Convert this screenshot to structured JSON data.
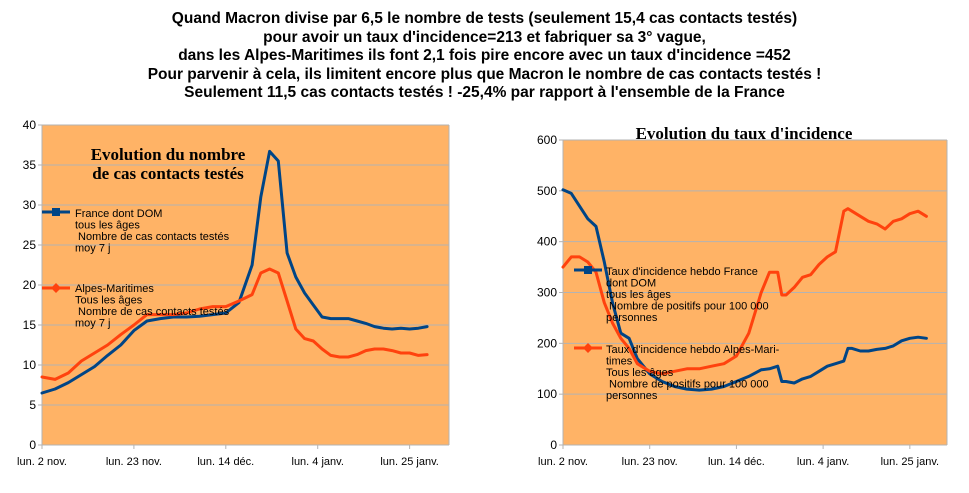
{
  "headline": [
    "Quand Macron divise par 6,5 le nombre de tests (seulement 15,4 cas contacts testés)",
    "pour avoir un taux d'incidence=213 et fabriquer sa 3° vague,",
    "dans les Alpes-Maritimes ils font 2,1 fois pire encore avec un taux d'incidence =452",
    "Pour parvenir à cela, ils limitent encore plus que Macron le nombre de cas contacts testés !",
    "Seulement 11,5 cas contacts testés ! -25,4% par rapport à l'ensemble de la France"
  ],
  "colors": {
    "plot_bg": "#ffb366",
    "grid": "#b3b3b3",
    "france": "#004586",
    "alpes": "#ff420e"
  },
  "chart_data": [
    {
      "type": "line",
      "title_lines": [
        "Evolution du nombre",
        "de cas contacts testés"
      ],
      "x_tick_labels": [
        "lun. 2 nov.",
        "lun. 23 nov.",
        "lun. 14 déc.",
        "lun. 4 janv.",
        "lun. 25 janv."
      ],
      "x_tick_days": [
        0,
        21,
        42,
        63,
        84
      ],
      "ylim": [
        0,
        40
      ],
      "y_ticks": [
        0,
        5,
        10,
        15,
        20,
        25,
        30,
        35,
        40
      ],
      "xlim_days": [
        0,
        93
      ],
      "grid": true,
      "legend_position": "left",
      "series": [
        {
          "name_lines": [
            "France dont DOM",
            "tous les âges",
            " Nombre de cas contacts testés",
            "moy 7 j"
          ],
          "color": "#004586",
          "marker": "square",
          "x": [
            0,
            3,
            6,
            9,
            12,
            15,
            18,
            21,
            24,
            27,
            30,
            33,
            36,
            39,
            42,
            45,
            48,
            50,
            52,
            54,
            56,
            58,
            60,
            62,
            64,
            66,
            68,
            70,
            72,
            74,
            76,
            78,
            80,
            82,
            84,
            86,
            88
          ],
          "y": [
            6.5,
            7.0,
            7.8,
            8.8,
            9.8,
            11.2,
            12.5,
            14.3,
            15.5,
            15.8,
            16.0,
            16.0,
            16.1,
            16.3,
            16.5,
            17.8,
            22.5,
            31.0,
            36.7,
            35.5,
            24.0,
            21.0,
            19.0,
            17.5,
            16.0,
            15.8,
            15.8,
            15.8,
            15.5,
            15.2,
            14.8,
            14.6,
            14.5,
            14.6,
            14.5,
            14.6,
            14.8
          ]
        },
        {
          "name_lines": [
            "Alpes-Maritimes",
            "Tous les âges",
            " Nombre de cas contacts testés",
            "moy 7 j"
          ],
          "color": "#ff420e",
          "marker": "diamond",
          "x": [
            0,
            3,
            6,
            9,
            12,
            15,
            18,
            21,
            24,
            27,
            30,
            33,
            36,
            39,
            42,
            45,
            48,
            50,
            52,
            54,
            56,
            58,
            60,
            62,
            64,
            66,
            68,
            70,
            72,
            74,
            76,
            78,
            80,
            82,
            84,
            86,
            88
          ],
          "y": [
            8.5,
            8.2,
            9.0,
            10.5,
            11.5,
            12.5,
            13.8,
            15.0,
            16.3,
            16.3,
            16.3,
            16.5,
            17.0,
            17.3,
            17.3,
            18.0,
            18.8,
            21.5,
            22.0,
            21.5,
            18.0,
            14.5,
            13.3,
            13.0,
            12.0,
            11.2,
            11.0,
            11.0,
            11.3,
            11.8,
            12.0,
            12.0,
            11.8,
            11.5,
            11.5,
            11.2,
            11.3
          ]
        }
      ]
    },
    {
      "type": "line",
      "title_lines": [
        "Evolution du taux d'incidence"
      ],
      "x_tick_labels": [
        "lun. 2 nov.",
        "lun. 23 nov.",
        "lun. 14 déc.",
        "lun. 4 janv.",
        "lun. 25 janv."
      ],
      "x_tick_days": [
        0,
        21,
        42,
        63,
        84
      ],
      "ylim": [
        0,
        600
      ],
      "y_ticks": [
        0,
        100,
        200,
        300,
        400,
        500,
        600
      ],
      "xlim_days": [
        0,
        93
      ],
      "grid": true,
      "legend_position": "left",
      "series": [
        {
          "name_lines": [
            "Taux d'incidence hebdo France",
            "dont DOM",
            "tous les âges",
            " Nombre de positifs pour 100 000",
            "personnes"
          ],
          "color": "#004586",
          "marker": "square",
          "x": [
            0,
            2,
            4,
            6,
            8,
            10,
            12,
            14,
            16,
            18,
            21,
            24,
            27,
            30,
            33,
            36,
            39,
            42,
            45,
            48,
            50,
            52,
            53,
            54,
            56,
            58,
            60,
            62,
            64,
            66,
            68,
            69,
            70,
            72,
            74,
            76,
            78,
            80,
            82,
            84,
            86,
            88
          ],
          "y": [
            502,
            495,
            470,
            445,
            430,
            360,
            280,
            220,
            210,
            170,
            140,
            125,
            115,
            110,
            108,
            110,
            115,
            125,
            135,
            148,
            150,
            155,
            125,
            125,
            122,
            130,
            135,
            145,
            155,
            160,
            165,
            190,
            190,
            185,
            185,
            188,
            190,
            195,
            205,
            210,
            212,
            210
          ]
        },
        {
          "name_lines": [
            "Taux d'incidence hebdo Alpes-Mari-",
            "times",
            "Tous les âges",
            " Nombre de positifs pour 100 000",
            "personnes"
          ],
          "color": "#ff420e",
          "marker": "diamond",
          "x": [
            0,
            2,
            4,
            6,
            8,
            10,
            12,
            14,
            16,
            18,
            21,
            24,
            27,
            30,
            33,
            36,
            39,
            42,
            45,
            48,
            50,
            52,
            53,
            54,
            56,
            58,
            60,
            62,
            64,
            66,
            68,
            69,
            70,
            72,
            74,
            76,
            78,
            80,
            82,
            84,
            86,
            88
          ],
          "y": [
            350,
            370,
            370,
            360,
            340,
            280,
            240,
            210,
            190,
            160,
            145,
            140,
            145,
            150,
            150,
            155,
            160,
            175,
            220,
            300,
            340,
            340,
            295,
            295,
            310,
            330,
            335,
            355,
            370,
            380,
            460,
            465,
            460,
            450,
            440,
            435,
            425,
            440,
            445,
            455,
            460,
            450
          ]
        }
      ]
    }
  ]
}
